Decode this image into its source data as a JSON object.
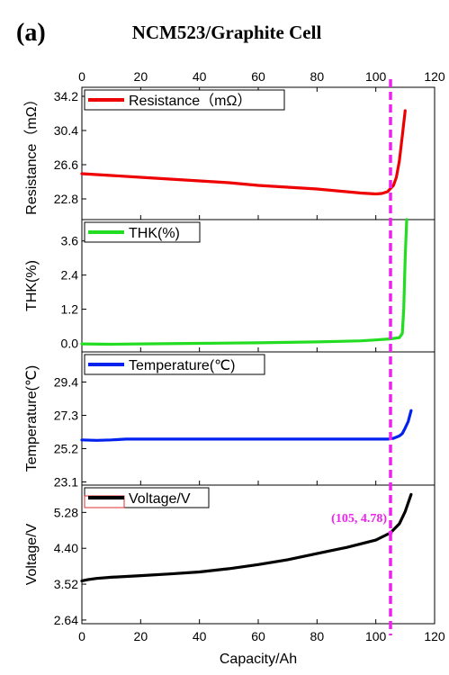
{
  "panel_label": "(a)",
  "title": "NCM523/Graphite Cell",
  "chart_data": {
    "type": "line",
    "x_axis": {
      "label": "Capacity/Ah",
      "range": [
        0,
        120
      ],
      "ticks": [
        0,
        20,
        40,
        60,
        80,
        100,
        120
      ],
      "tick_labels": [
        "0",
        "20",
        "40",
        "60",
        "80",
        "100",
        "120"
      ],
      "top_ticks_mirrored": true
    },
    "marker_line": {
      "x": 105,
      "color": "#ee22ee",
      "style": "dashed"
    },
    "annotation": {
      "text": "(105, 4.78)",
      "x": 105,
      "y": 4.78,
      "color": "#ee22ee",
      "panel": 3
    },
    "panels": [
      {
        "ylabel": "Resistance（mΩ）",
        "ylim": [
          20.5,
          35.2
        ],
        "yticks": [
          22.8,
          26.6,
          30.4,
          34.2
        ],
        "ytick_labels": [
          "22.8",
          "26.6",
          "30.4",
          "34.2"
        ],
        "legend": "Resistance（mΩ）",
        "color": "#ee0000",
        "series": {
          "x": [
            0,
            10,
            20,
            30,
            40,
            50,
            60,
            70,
            80,
            90,
            95,
            100,
            102,
            104,
            106,
            107,
            108,
            109,
            110
          ],
          "y": [
            25.6,
            25.4,
            25.2,
            25.0,
            24.8,
            24.6,
            24.3,
            24.1,
            23.9,
            23.6,
            23.45,
            23.35,
            23.4,
            23.6,
            24.3,
            25.2,
            27.0,
            29.8,
            32.6
          ]
        }
      },
      {
        "ylabel": "THK(%)",
        "ylim": [
          -0.3,
          4.35
        ],
        "yticks": [
          0.0,
          1.2,
          2.4,
          3.6
        ],
        "ytick_labels": [
          "0.0",
          "1.2",
          "2.4",
          "3.6"
        ],
        "legend": "THK(%)",
        "color": "#22dd22",
        "series": {
          "x": [
            0,
            10,
            20,
            40,
            60,
            80,
            95,
            100,
            105,
            108,
            109,
            109.5,
            110,
            110.5
          ],
          "y": [
            -0.02,
            -0.03,
            -0.02,
            0.0,
            0.02,
            0.05,
            0.09,
            0.12,
            0.16,
            0.2,
            0.35,
            1.2,
            3.0,
            4.35
          ]
        }
      },
      {
        "ylabel": "Temperature(℃)",
        "ylim": [
          22.9,
          31.3
        ],
        "yticks": [
          23.1,
          25.2,
          27.3,
          29.4
        ],
        "ytick_labels": [
          "23.1",
          "25.2",
          "27.3",
          "29.4"
        ],
        "legend": "Temperature(℃)",
        "color": "#0022ee",
        "series": {
          "x": [
            0,
            5,
            10,
            15,
            20,
            40,
            60,
            80,
            100,
            104,
            106,
            108,
            109,
            110,
            111,
            112
          ],
          "y": [
            25.75,
            25.72,
            25.75,
            25.8,
            25.8,
            25.8,
            25.8,
            25.8,
            25.8,
            25.8,
            25.85,
            26.0,
            26.15,
            26.5,
            26.9,
            27.6
          ]
        }
      },
      {
        "ylabel": "Voltage/V",
        "ylim": [
          2.55,
          5.95
        ],
        "yticks": [
          2.64,
          3.52,
          4.4,
          5.28
        ],
        "ytick_labels": [
          "2.64",
          "3.52",
          "4.40",
          "5.28"
        ],
        "legend": "Voltage/V",
        "color": "#000000",
        "series": {
          "x": [
            0,
            2,
            5,
            10,
            20,
            30,
            40,
            50,
            60,
            70,
            80,
            90,
            100,
            105,
            108,
            110,
            112
          ],
          "y": [
            3.6,
            3.63,
            3.66,
            3.69,
            3.73,
            3.77,
            3.82,
            3.9,
            4.0,
            4.12,
            4.27,
            4.42,
            4.6,
            4.78,
            5.0,
            5.3,
            5.72
          ]
        }
      }
    ]
  }
}
